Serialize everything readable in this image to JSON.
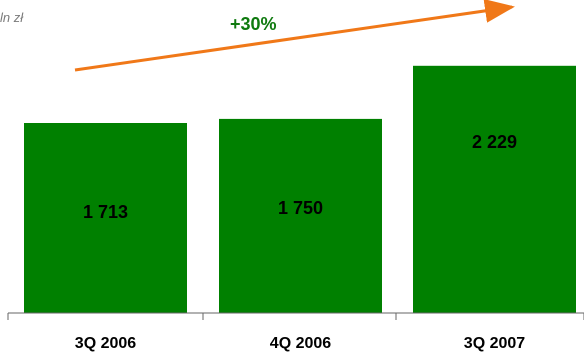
{
  "unit": "ln zł",
  "title_fragment": "",
  "growth": {
    "label": "+30%",
    "color": "#f07818"
  },
  "colors": {
    "bar": "#008000",
    "axis": "#666666",
    "text": "#000000"
  },
  "chart_data": {
    "type": "bar",
    "categories": [
      "3Q 2006",
      "4Q 2006",
      "3Q 2007"
    ],
    "values": [
      1713,
      1750,
      2229
    ],
    "value_labels": [
      "1 713",
      "1 750",
      "2 229"
    ],
    "ylim": [
      0,
      2400
    ],
    "grid": false,
    "legend": "none"
  }
}
